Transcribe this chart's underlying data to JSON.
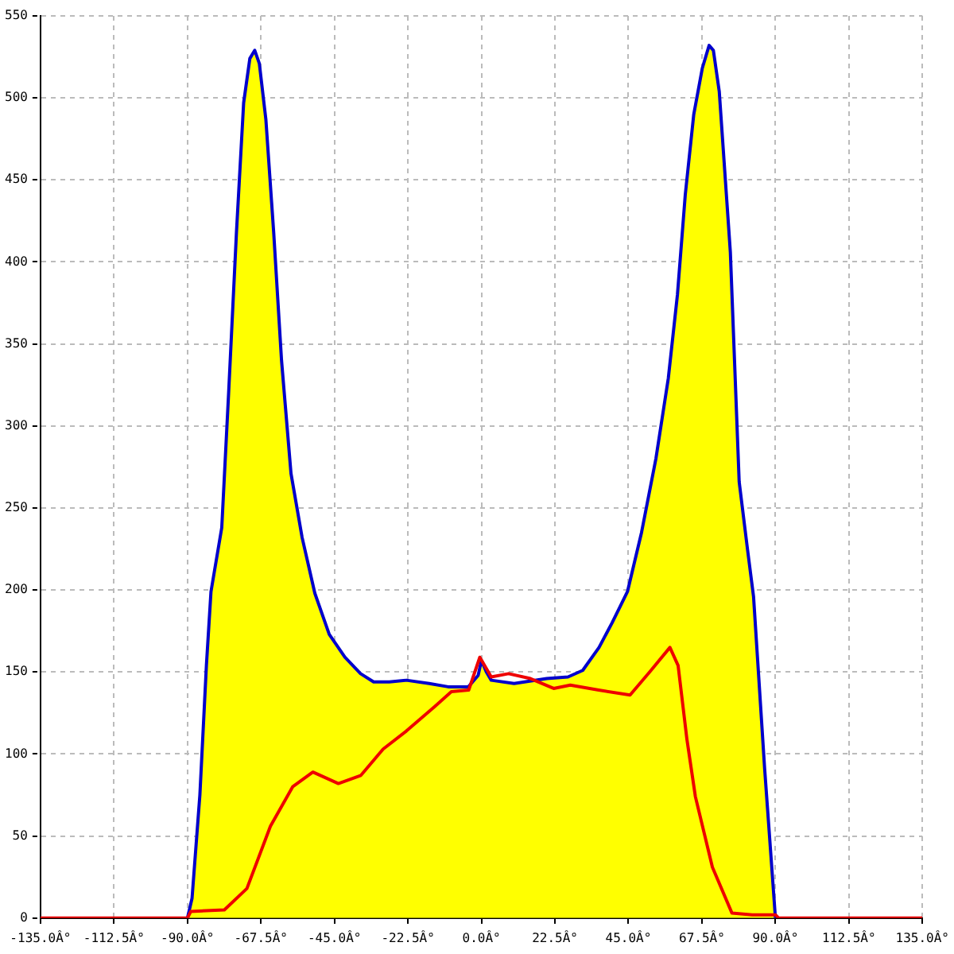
{
  "chart_data": {
    "type": "area",
    "series": [
      {
        "color": "#ffff00",
        "x": [
          -90,
          -88.6,
          -86.2,
          -84.2,
          -82.8,
          -79.5,
          -77.4,
          -75,
          -72.8,
          -70.9,
          -69.4,
          -68,
          -66,
          -63.6,
          -61.2,
          -58.3,
          -54.9,
          -51,
          -46.6,
          -41.8,
          -37,
          -33,
          -28.2,
          -23,
          -16,
          -10.2,
          -4,
          -1,
          0,
          1.5,
          3,
          10,
          20,
          26.5,
          31,
          36,
          40,
          44.7,
          49,
          53.4,
          57.2,
          60,
          62.4,
          65,
          67.6,
          69.7,
          71,
          72.8,
          76.2,
          78.9,
          81.5,
          83.3,
          86.7,
          90
        ],
        "values": [
          0,
          12,
          75,
          154,
          199,
          238,
          320,
          418,
          497,
          524,
          529,
          521,
          487,
          418,
          340,
          271,
          232,
          198,
          173,
          159,
          149,
          144,
          144,
          145,
          143,
          141,
          141,
          148,
          157,
          150,
          145,
          143,
          146,
          147,
          151,
          165,
          180,
          199,
          235,
          280,
          329,
          380,
          441,
          490,
          518,
          532,
          529,
          504,
          406,
          266,
          224,
          196,
          91,
          0
        ]
      },
      {
        "type": "line",
        "color": "#ee0000",
        "x": [
          -135,
          -90,
          -89,
          -78.7,
          -71.8,
          -64.6,
          -57.8,
          -51.6,
          -43.8,
          -36.9,
          -30.1,
          -23,
          -14.3,
          -9.2,
          -3.9,
          -0.5,
          3,
          8.3,
          15,
          22.1,
          27.2,
          35.9,
          45.5,
          51.5,
          57.7,
          60.2,
          62.9,
          65.5,
          70.7,
          76.7,
          82.9,
          90,
          91,
          135
        ],
        "values": [
          0,
          0,
          4,
          5,
          18,
          56,
          80,
          89,
          82,
          87,
          103,
          114,
          129,
          138,
          139,
          159,
          147,
          149,
          146,
          140,
          142,
          139,
          136,
          150,
          165,
          154,
          109,
          74,
          31,
          3,
          2,
          2,
          0,
          0
        ]
      }
    ],
    "xlim": [
      -135,
      135
    ],
    "xticks": [
      {
        "value": -135,
        "label": "-135.0Â°"
      },
      {
        "value": -112.5,
        "label": "-112.5Â°"
      },
      {
        "value": -90,
        "label": "-90.0Â°"
      },
      {
        "value": -67.5,
        "label": "-67.5Â°"
      },
      {
        "value": -45,
        "label": "-45.0Â°"
      },
      {
        "value": -22.5,
        "label": "-22.5Â°"
      },
      {
        "value": 0,
        "label": "0.0Â°"
      },
      {
        "value": 22.5,
        "label": "22.5Â°"
      },
      {
        "value": 45,
        "label": "45.0Â°"
      },
      {
        "value": 67.5,
        "label": "67.5Â°"
      },
      {
        "value": 90,
        "label": "90.0Â°"
      },
      {
        "value": 112.5,
        "label": "112.5Â°"
      },
      {
        "value": 135,
        "label": "135.0Â°"
      }
    ],
    "ylim": [
      0,
      550
    ],
    "yticks": [
      0,
      50,
      100,
      150,
      200,
      250,
      300,
      350,
      400,
      450,
      500,
      550
    ],
    "grid": true,
    "legend": false,
    "marker": "none",
    "line_style": "solid"
  }
}
